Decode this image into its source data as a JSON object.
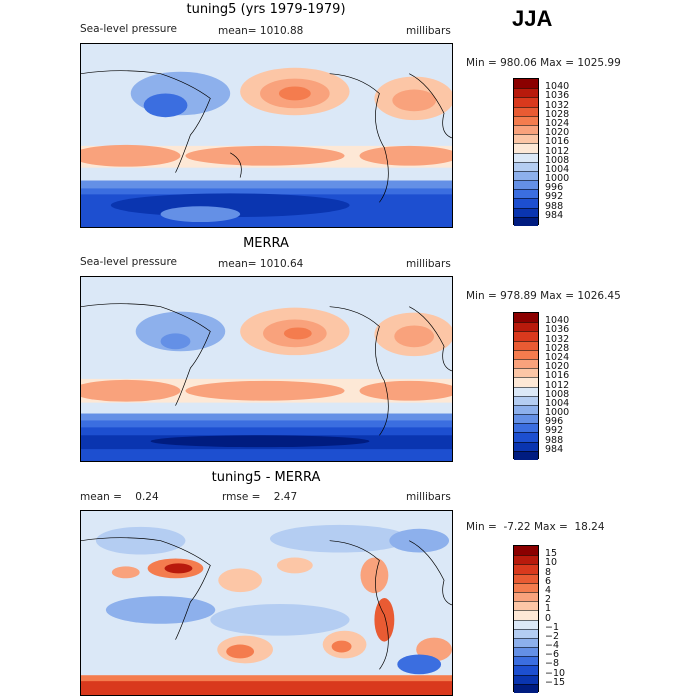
{
  "season_label": "JJA",
  "panels": [
    {
      "title": "tuning5 (yrs 1979-1979)",
      "left_label": "Sea-level pressure",
      "center_label": "mean= 1010.88",
      "right_label": "millibars",
      "minmax": "Min = 980.06 Max = 1025.99",
      "colorbar": {
        "labels": [
          "1040",
          "1036",
          "1032",
          "1028",
          "1024",
          "1020",
          "1016",
          "1012",
          "1008",
          "1004",
          "1000",
          "996",
          "992",
          "988",
          "984"
        ],
        "colors": [
          "#8b0000",
          "#b81a0c",
          "#d9391d",
          "#e95b33",
          "#f47c4e",
          "#f9a27c",
          "#fcc6a6",
          "#fde8d6",
          "#dbe8f7",
          "#b4cdf2",
          "#8db0ec",
          "#6490e6",
          "#3b6ee0",
          "#1d4fd0",
          "#0a35b0",
          "#001c80"
        ]
      }
    },
    {
      "title": "MERRA",
      "left_label": "Sea-level pressure",
      "center_label": "mean= 1010.64",
      "right_label": "millibars",
      "minmax": "Min = 978.89 Max = 1026.45",
      "colorbar": {
        "labels": [
          "1040",
          "1036",
          "1032",
          "1028",
          "1024",
          "1020",
          "1016",
          "1012",
          "1008",
          "1004",
          "1000",
          "996",
          "992",
          "988",
          "984"
        ],
        "colors": [
          "#8b0000",
          "#b81a0c",
          "#d9391d",
          "#e95b33",
          "#f47c4e",
          "#f9a27c",
          "#fcc6a6",
          "#fde8d6",
          "#dbe8f7",
          "#b4cdf2",
          "#8db0ec",
          "#6490e6",
          "#3b6ee0",
          "#1d4fd0",
          "#0a35b0",
          "#001c80"
        ]
      }
    },
    {
      "title": "tuning5 - MERRA",
      "left_label": "mean =    0.24",
      "center_label": "rmse =    2.47",
      "right_label": "millibars",
      "minmax": "Min =  -7.22 Max =  18.24",
      "colorbar": {
        "labels": [
          "15",
          "10",
          "8",
          "6",
          "4",
          "2",
          "1",
          "0",
          "−1",
          "−2",
          "−4",
          "−6",
          "−8",
          "−10",
          "−15"
        ],
        "colors": [
          "#8b0000",
          "#b81a0c",
          "#d9391d",
          "#e95b33",
          "#f47c4e",
          "#f9a27c",
          "#fcc6a6",
          "#fde8d6",
          "#dbe8f7",
          "#b4cdf2",
          "#8db0ec",
          "#6490e6",
          "#3b6ee0",
          "#1d4fd0",
          "#0a35b0",
          "#001c80"
        ]
      }
    }
  ]
}
